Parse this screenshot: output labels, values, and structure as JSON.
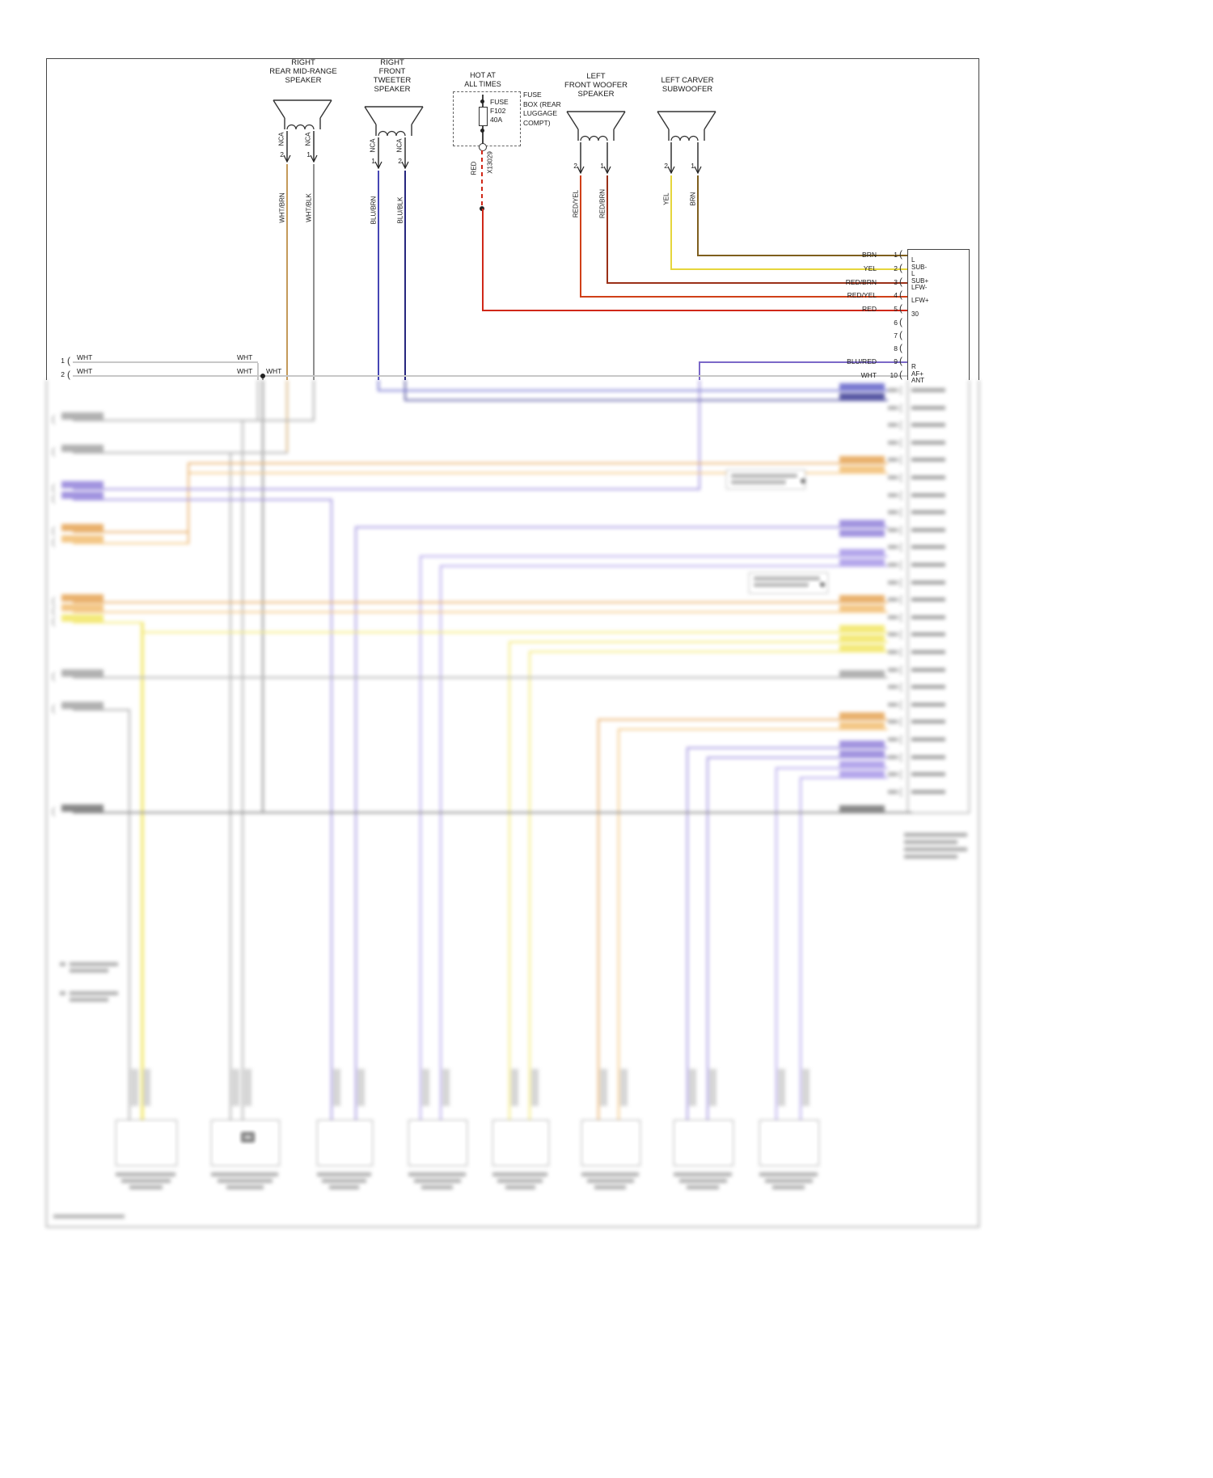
{
  "speakers": [
    {
      "name_lines": [
        "RIGHT",
        "REAR MID-RANGE",
        "SPEAKER"
      ],
      "pins": [
        {
          "num": "2",
          "nca": "NCA",
          "wire": "WHT/BRN"
        },
        {
          "num": "1",
          "nca": "NCA",
          "wire": "WHT/BLK"
        }
      ]
    },
    {
      "name_lines": [
        "RIGHT",
        "FRONT",
        "TWEETER",
        "SPEAKER"
      ],
      "pins": [
        {
          "num": "1",
          "nca": "NCA",
          "wire": "BLU/BRN"
        },
        {
          "num": "2",
          "nca": "NCA",
          "wire": "BLU/BLK"
        }
      ]
    },
    {
      "name_lines": [
        "LEFT",
        "FRONT WOOFER",
        "SPEAKER"
      ],
      "pins": [
        {
          "num": "2",
          "nca": "",
          "wire": "RED/YEL"
        },
        {
          "num": "1",
          "nca": "",
          "wire": "RED/BRN"
        }
      ]
    },
    {
      "name_lines": [
        "LEFT CARVER",
        "SUBWOOFER"
      ],
      "pins": [
        {
          "num": "2",
          "nca": "",
          "wire": "YEL"
        },
        {
          "num": "1",
          "nca": "",
          "wire": "BRN"
        }
      ]
    }
  ],
  "power": {
    "hot_lines": [
      "HOT AT",
      "ALL TIMES"
    ],
    "fuse_lines": [
      "FUSE",
      "F102",
      "40A"
    ],
    "fusebox_lines": [
      "FUSE",
      "BOX (REAR",
      "LUGGAGE",
      "COMPT)"
    ],
    "terminal": "X13029",
    "wire": "RED"
  },
  "right_connector": {
    "pins": [
      {
        "n": "1",
        "wire": "BRN",
        "label": "L SUB-"
      },
      {
        "n": "2",
        "wire": "YEL",
        "label": "L SUB+"
      },
      {
        "n": "3",
        "wire": "RED/BRN",
        "label": "LFW-"
      },
      {
        "n": "4",
        "wire": "RED/YEL",
        "label": "LFW+"
      },
      {
        "n": "5",
        "wire": "RED",
        "label": "30"
      },
      {
        "n": "6",
        "wire": "",
        "label": ""
      },
      {
        "n": "7",
        "wire": "",
        "label": ""
      },
      {
        "n": "8",
        "wire": "",
        "label": ""
      },
      {
        "n": "9",
        "wire": "BLU/RED",
        "label": "R AF+"
      },
      {
        "n": "10",
        "wire": "WHT",
        "label": "ANT"
      }
    ]
  },
  "left_connector": {
    "pins": [
      {
        "n": "1",
        "wire_labels": [
          "WHT",
          "WHT"
        ]
      },
      {
        "n": "2",
        "wire_labels": [
          "WHT",
          "WHT",
          "WHT"
        ]
      }
    ]
  },
  "colors": {
    "wht": "#c8c8c8",
    "wht_brn": "#c49a5a",
    "wht_blk": "#909090",
    "blu_brn": "#4646b4",
    "blu_blk": "#26267e",
    "red": "#d02818",
    "red_yel": "#d04018",
    "red_brn": "#9a3018",
    "yel": "#e6d63c",
    "brn": "#7f5f1e",
    "blu_red": "#7b68c8",
    "blk": "#404040",
    "purple": "#8878d0",
    "purple2": "#9e8ede",
    "orange": "#dc9a4a",
    "orange2": "#e8b468",
    "yellow": "#e8dc5a",
    "gray": "#9a9a9a",
    "dkgray": "#6a6a6a",
    "blu": "#5a5ac0",
    "navy": "#34348c"
  }
}
